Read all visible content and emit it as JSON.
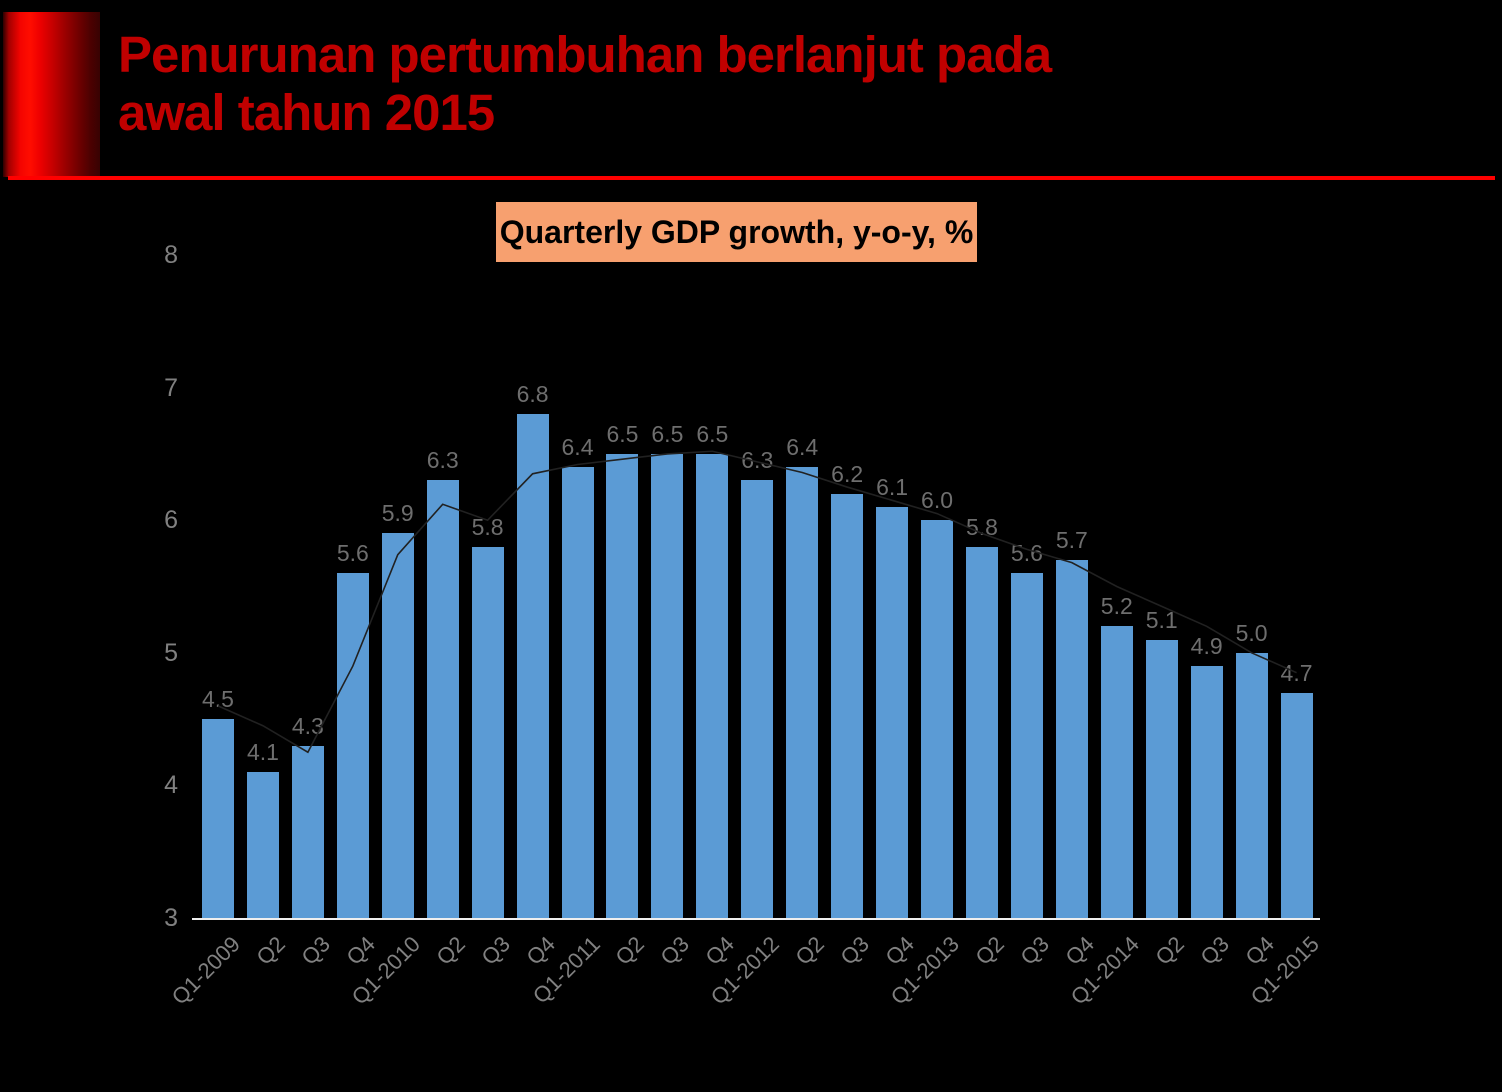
{
  "header": {
    "title_line1": "Penurunan pertumbuhan berlanjut pada",
    "title_line2": "awal tahun 2015",
    "title_color": "#c00000",
    "rule_color": "#ff0000"
  },
  "chart_data": {
    "type": "bar",
    "title": "Quarterly GDP growth, y-o-y, %",
    "title_badge_bg": "#f7a06f",
    "categories": [
      "Q1-2009",
      "Q2",
      "Q3",
      "Q4",
      "Q1-2010",
      "Q2",
      "Q3",
      "Q4",
      "Q1-2011",
      "Q2",
      "Q3",
      "Q4",
      "Q1-2012",
      "Q2",
      "Q3",
      "Q4",
      "Q1-2013",
      "Q2",
      "Q3",
      "Q4",
      "Q1-2014",
      "Q2",
      "Q3",
      "Q4",
      "Q1-2015"
    ],
    "series": [
      {
        "name": "Quarterly GDP growth y-o-y %",
        "type": "bar",
        "color": "#5b9bd5",
        "values": [
          4.5,
          4.1,
          4.3,
          5.6,
          5.9,
          6.3,
          5.8,
          6.8,
          6.4,
          6.5,
          6.5,
          6.5,
          6.3,
          6.4,
          6.2,
          6.1,
          6.0,
          5.8,
          5.6,
          5.7,
          5.2,
          5.1,
          4.9,
          5.0,
          4.7
        ]
      },
      {
        "name": "trend line (estimated from pixels)",
        "type": "line",
        "color": "#212121",
        "values": [
          4.6,
          4.45,
          4.25,
          4.9,
          5.74,
          6.12,
          6.0,
          6.35,
          6.42,
          6.46,
          6.5,
          6.52,
          6.44,
          6.36,
          6.25,
          6.15,
          6.05,
          5.9,
          5.78,
          5.68,
          5.5,
          5.35,
          5.2,
          5.0,
          4.85
        ]
      }
    ],
    "data_labels_on": true,
    "xlabel": "",
    "ylabel": "",
    "ylim": [
      3,
      8
    ],
    "yticks": [
      3,
      4,
      5,
      6,
      7,
      8
    ],
    "grid": false,
    "legend": "none",
    "background": "#000000",
    "axis_label_color": "#808080",
    "data_label_color": "#6e6e6e",
    "baseline_color": "#eeeeee"
  }
}
